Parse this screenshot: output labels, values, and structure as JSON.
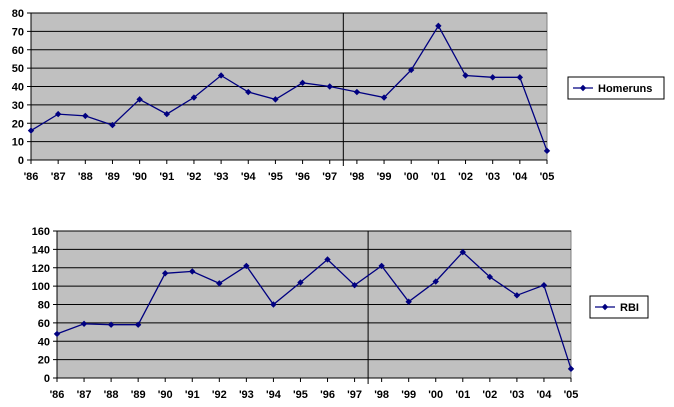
{
  "chart_data": [
    {
      "type": "line",
      "title": "",
      "xlabel": "",
      "ylabel": "",
      "categories": [
        "'86",
        "'87",
        "'88",
        "'89",
        "'90",
        "'91",
        "'92",
        "'93",
        "'94",
        "'95",
        "'96",
        "'97",
        "'98",
        "'99",
        "'00",
        "'01",
        "'02",
        "'03",
        "'04",
        "'05"
      ],
      "series": [
        {
          "name": "Homeruns",
          "color": "#000080",
          "values": [
            16,
            25,
            24,
            19,
            33,
            25,
            34,
            46,
            37,
            33,
            42,
            40,
            37,
            34,
            49,
            73,
            46,
            45,
            45,
            5
          ]
        }
      ],
      "ylim": [
        0,
        80
      ],
      "yticks": [
        0,
        10,
        20,
        30,
        40,
        50,
        60,
        70,
        80
      ],
      "marker_after": "'97",
      "grid": true,
      "legend_position": "right"
    },
    {
      "type": "line",
      "title": "",
      "xlabel": "",
      "ylabel": "",
      "categories": [
        "'86",
        "'87",
        "'88",
        "'89",
        "'90",
        "'91",
        "'92",
        "'93",
        "'94",
        "'95",
        "'96",
        "'97",
        "'98",
        "'99",
        "'00",
        "'01",
        "'02",
        "'03",
        "'04",
        "'05"
      ],
      "series": [
        {
          "name": "RBI",
          "color": "#000080",
          "values": [
            48,
            59,
            58,
            58,
            114,
            116,
            103,
            122,
            80,
            104,
            129,
            101,
            122,
            83,
            105,
            137,
            110,
            90,
            101,
            10
          ]
        }
      ],
      "ylim": [
        0,
        160
      ],
      "yticks": [
        0,
        20,
        40,
        60,
        80,
        100,
        120,
        140,
        160
      ],
      "marker_after": "'97",
      "grid": true,
      "legend_position": "right"
    }
  ]
}
